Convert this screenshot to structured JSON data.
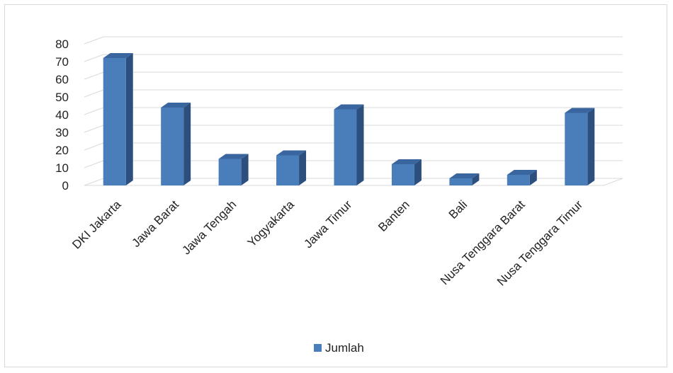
{
  "chart_data": {
    "type": "bar",
    "style": "3d-column",
    "categories": [
      "DKI Jakarta",
      "Jawa Barat",
      "Jawa Tengah",
      "Yogyakarta",
      "Jawa Timur",
      "Banten",
      "Bali",
      "Nusa Tenggara Barat",
      "Nusa Tenggara Timur"
    ],
    "series": [
      {
        "name": "Jumlah",
        "values": [
          72,
          44,
          15,
          17,
          43,
          12,
          4,
          6,
          41
        ],
        "color": "#4a7ebb"
      }
    ],
    "yticks": [
      "0",
      "10",
      "20",
      "30",
      "40",
      "50",
      "60",
      "70",
      "80"
    ],
    "ylim": [
      0,
      80
    ],
    "grid": true,
    "legend_position": "bottom"
  }
}
